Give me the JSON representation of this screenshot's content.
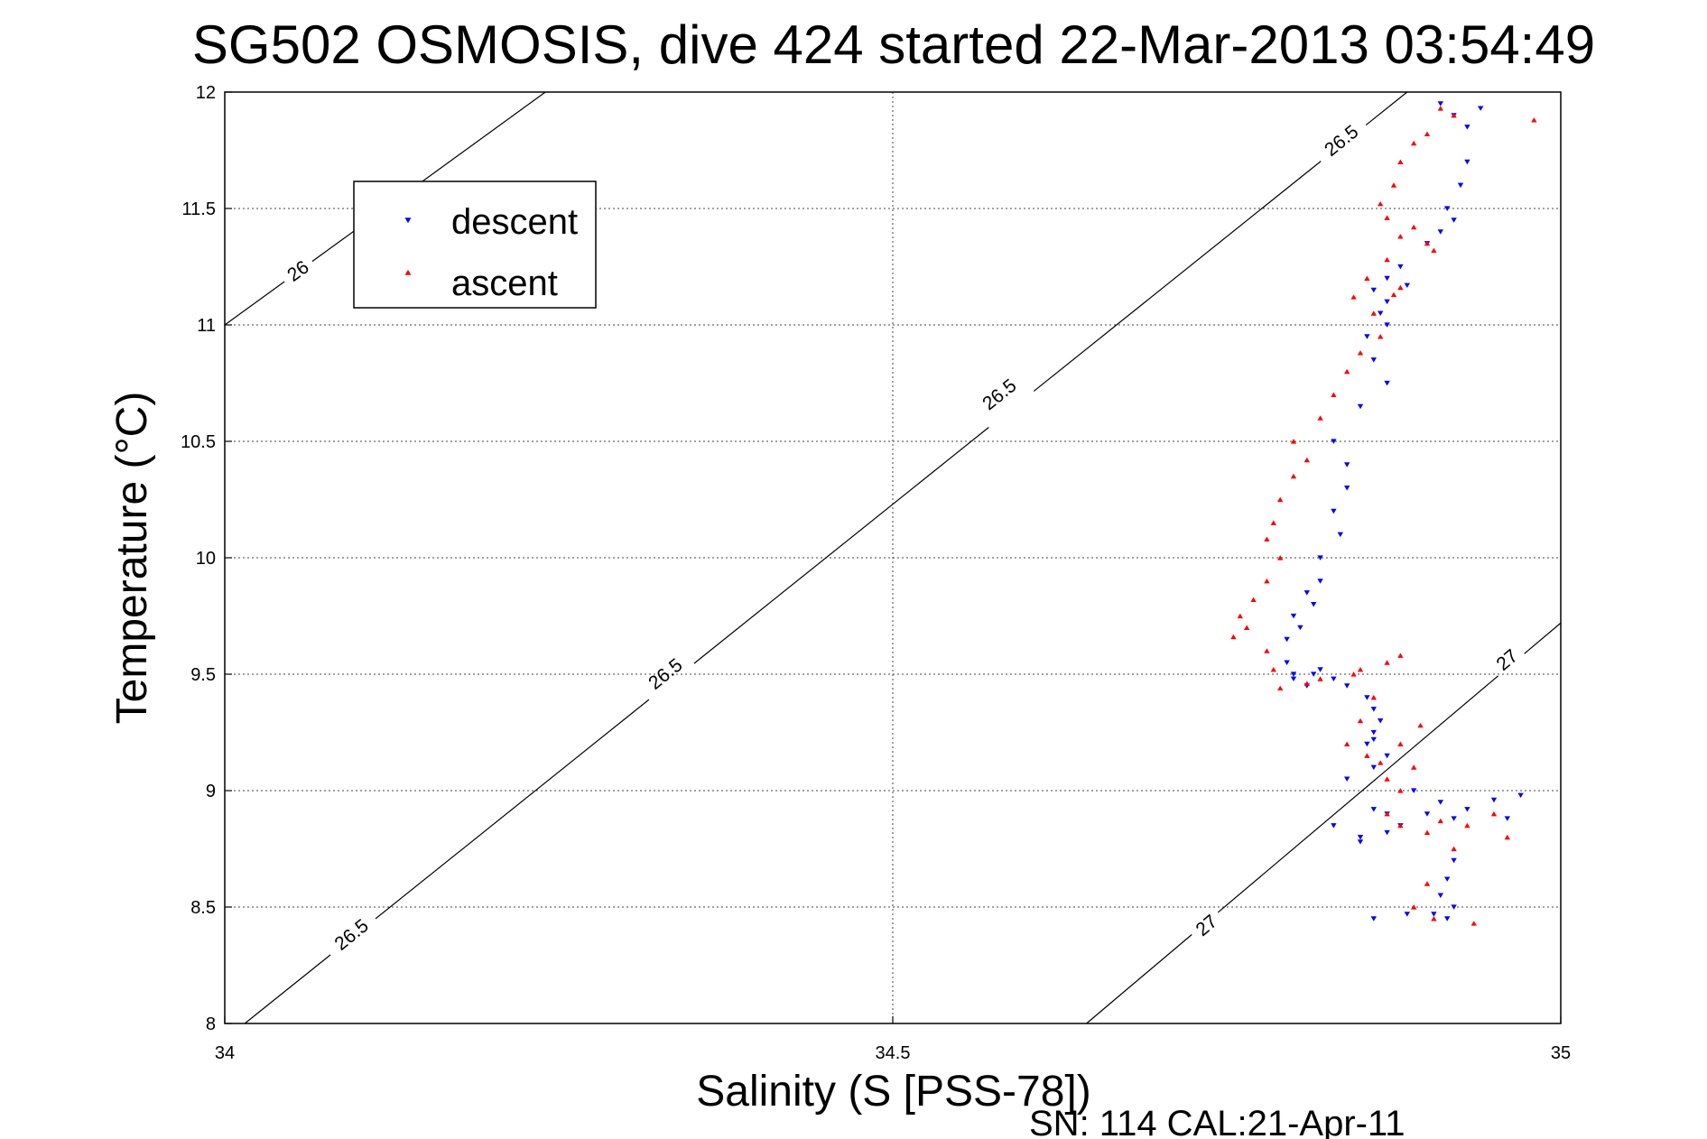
{
  "chart_data": {
    "type": "scatter",
    "title": "SG502 OSMOSIS, dive 424 started 22-Mar-2013 03:54:49",
    "xlabel": "Salinity (S [PSS-78])",
    "ylabel": "Temperature (°C)",
    "xlim": [
      34,
      35
    ],
    "ylim": [
      8,
      12
    ],
    "x_ticks": [
      "34",
      "34.5",
      "35"
    ],
    "y_ticks": [
      "8",
      "8.5",
      "9",
      "9.5",
      "10",
      "10.5",
      "11",
      "11.5",
      "12"
    ],
    "grid": true,
    "legend_position": "top-left",
    "footer": "SN: 114  CAL:21-Apr-11",
    "colors": {
      "descent": "#0000ff",
      "ascent": "#ff0000"
    },
    "contours": [
      {
        "label": "26",
        "points": [
          [
            34.0,
            11.0
          ],
          [
            34.24,
            12.0
          ]
        ],
        "label_at": [
          [
            34.055,
            11.23
          ]
        ]
      },
      {
        "label": "26.5",
        "points": [
          [
            34.015,
            8.0
          ],
          [
            34.885,
            12.0
          ]
        ],
        "label_at": [
          [
            34.095,
            8.38
          ],
          [
            34.33,
            9.5
          ],
          [
            34.58,
            10.7
          ],
          [
            34.836,
            11.79
          ]
        ]
      },
      {
        "label": "27",
        "points": [
          [
            34.645,
            8.0
          ],
          [
            35.0,
            9.72
          ]
        ],
        "label_at": [
          [
            34.735,
            8.42
          ],
          [
            34.96,
            9.56
          ]
        ]
      }
    ],
    "series": [
      {
        "name": "descent",
        "marker": "triangle-down",
        "x": [
          34.91,
          34.92,
          34.93,
          34.94,
          34.93,
          34.925,
          34.915,
          34.92,
          34.91,
          34.9,
          34.88,
          34.87,
          34.86,
          34.87,
          34.865,
          34.855,
          34.87,
          34.885,
          34.86,
          34.87,
          34.85,
          34.83,
          34.84,
          34.84,
          34.83,
          34.835,
          34.82,
          34.82,
          34.81,
          34.815,
          34.8,
          34.805,
          34.795,
          34.795,
          34.8,
          34.81,
          34.8,
          34.815,
          34.82,
          34.83,
          34.84,
          34.855,
          34.86,
          34.865,
          34.86,
          34.855,
          34.86,
          34.87,
          34.86,
          34.84,
          34.83,
          34.85,
          34.87,
          34.89,
          34.85,
          34.87,
          34.86,
          34.88,
          34.9,
          34.91,
          34.92,
          34.93,
          34.95,
          34.97,
          34.96,
          34.92,
          34.915,
          34.91,
          34.92,
          34.905,
          34.915,
          34.86,
          34.885
        ],
        "y": [
          11.95,
          11.9,
          11.85,
          11.93,
          11.7,
          11.6,
          11.5,
          11.45,
          11.4,
          11.35,
          11.25,
          11.2,
          11.15,
          11.1,
          11.05,
          10.95,
          11.0,
          11.17,
          10.85,
          10.75,
          10.65,
          10.5,
          10.4,
          10.3,
          10.2,
          10.1,
          10.0,
          9.9,
          9.85,
          9.8,
          9.75,
          9.7,
          9.65,
          9.55,
          9.5,
          9.45,
          9.48,
          9.5,
          9.52,
          9.48,
          9.45,
          9.4,
          9.35,
          9.3,
          9.25,
          9.2,
          9.22,
          9.15,
          9.1,
          9.05,
          8.85,
          8.8,
          8.9,
          9.0,
          8.78,
          8.82,
          8.92,
          8.85,
          8.9,
          8.95,
          8.88,
          8.92,
          8.96,
          8.98,
          8.88,
          8.7,
          8.62,
          8.55,
          8.5,
          8.47,
          8.45,
          8.45,
          8.47
        ]
      },
      {
        "name": "ascent",
        "marker": "triangle-up",
        "x": [
          34.91,
          34.92,
          34.9,
          34.89,
          34.88,
          34.875,
          34.865,
          34.87,
          34.89,
          34.88,
          34.9,
          34.905,
          34.87,
          34.855,
          34.845,
          34.86,
          34.875,
          34.88,
          34.865,
          34.85,
          34.84,
          34.83,
          34.82,
          34.8,
          34.81,
          34.8,
          34.79,
          34.785,
          34.78,
          34.79,
          34.78,
          34.77,
          34.76,
          34.765,
          34.755,
          34.78,
          34.785,
          34.79,
          34.81,
          34.82,
          34.845,
          34.85,
          34.87,
          34.88,
          34.86,
          34.85,
          34.84,
          34.855,
          34.865,
          34.87,
          34.88,
          34.88,
          34.89,
          34.895,
          34.87,
          34.88,
          34.9,
          34.91,
          34.93,
          34.95,
          34.96,
          34.92,
          34.9,
          34.89,
          34.905,
          34.935,
          34.98
        ],
        "y": [
          11.93,
          11.9,
          11.82,
          11.78,
          11.7,
          11.6,
          11.52,
          11.46,
          11.42,
          11.38,
          11.35,
          11.32,
          11.28,
          11.2,
          11.12,
          11.05,
          11.13,
          11.16,
          10.95,
          10.88,
          10.8,
          10.7,
          10.6,
          10.5,
          10.42,
          10.35,
          10.25,
          10.15,
          10.08,
          10.0,
          9.9,
          9.82,
          9.75,
          9.7,
          9.66,
          9.6,
          9.52,
          9.44,
          9.46,
          9.48,
          9.5,
          9.52,
          9.55,
          9.58,
          9.4,
          9.3,
          9.2,
          9.15,
          9.12,
          9.05,
          9.0,
          9.2,
          9.1,
          9.28,
          8.9,
          8.85,
          8.82,
          8.87,
          8.85,
          8.9,
          8.8,
          8.75,
          8.6,
          8.5,
          8.45,
          8.43,
          11.88
        ]
      }
    ]
  }
}
